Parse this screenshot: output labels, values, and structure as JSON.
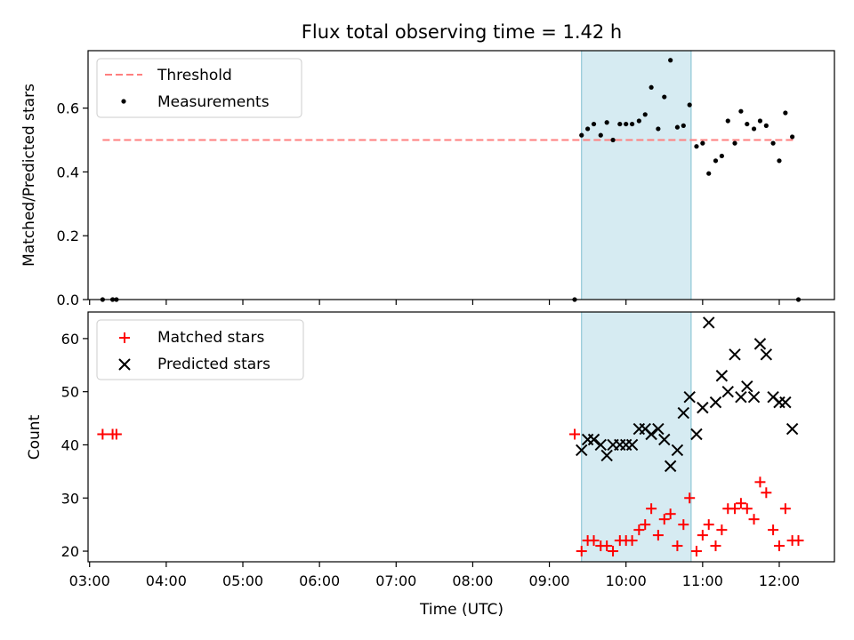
{
  "title": "Flux total observing time = 1.42 h",
  "chart_data": [
    {
      "type": "scatter",
      "ylabel": "Matched/Predicted stars",
      "ylim": [
        0,
        0.78
      ],
      "yticks": [
        0.0,
        0.2,
        0.4,
        0.6
      ],
      "ytick_labels": [
        "0.0",
        "0.2",
        "0.4",
        "0.6"
      ],
      "threshold": {
        "name": "Threshold",
        "value": 0.5,
        "x_start": 3.17,
        "x_end": 12.22,
        "color": "#ff7f7f"
      },
      "series": [
        {
          "name": "Measurements",
          "marker": "dot",
          "color": "#000000",
          "x": [
            3.17,
            3.3,
            3.35,
            9.33,
            9.42,
            9.5,
            9.58,
            9.67,
            9.75,
            9.83,
            9.92,
            10.0,
            10.08,
            10.17,
            10.25,
            10.33,
            10.42,
            10.5,
            10.58,
            10.67,
            10.75,
            10.83,
            10.92,
            11.0,
            11.08,
            11.17,
            11.25,
            11.33,
            11.42,
            11.5,
            11.58,
            11.67,
            11.75,
            11.83,
            11.92,
            12.0,
            12.08,
            12.17,
            12.25
          ],
          "y": [
            0.0,
            0.0,
            0.0,
            0.0,
            0.515,
            0.535,
            0.55,
            0.515,
            0.555,
            0.5,
            0.55,
            0.55,
            0.55,
            0.56,
            0.58,
            0.665,
            0.535,
            0.635,
            0.75,
            0.54,
            0.545,
            0.61,
            0.48,
            0.49,
            0.395,
            0.435,
            0.45,
            0.56,
            0.49,
            0.59,
            0.55,
            0.535,
            0.56,
            0.545,
            0.49,
            0.435,
            0.585,
            0.51,
            0.0
          ]
        }
      ]
    },
    {
      "type": "scatter",
      "xlabel": "Time (UTC)",
      "ylabel": "Count",
      "ylim": [
        18,
        65
      ],
      "yticks": [
        20,
        30,
        40,
        50,
        60
      ],
      "ytick_labels": [
        "20",
        "30",
        "40",
        "50",
        "60"
      ],
      "series": [
        {
          "name": "Matched stars",
          "marker": "plus",
          "color": "#ff0000",
          "x": [
            3.17,
            3.3,
            3.35,
            9.33,
            9.42,
            9.5,
            9.58,
            9.67,
            9.75,
            9.83,
            9.92,
            10.0,
            10.08,
            10.17,
            10.25,
            10.33,
            10.42,
            10.5,
            10.58,
            10.67,
            10.75,
            10.83,
            10.92,
            11.0,
            11.08,
            11.17,
            11.25,
            11.33,
            11.42,
            11.5,
            11.58,
            11.67,
            11.75,
            11.83,
            11.92,
            12.0,
            12.08,
            12.17,
            12.25
          ],
          "y": [
            42,
            42,
            42,
            42,
            20,
            22,
            22,
            21,
            21,
            20,
            22,
            22,
            22,
            24,
            25,
            28,
            23,
            26,
            27,
            21,
            25,
            30,
            20,
            23,
            25,
            21,
            24,
            28,
            28,
            29,
            28,
            26,
            33,
            31,
            24,
            21,
            28,
            22,
            22
          ]
        },
        {
          "name": "Predicted stars",
          "marker": "x",
          "color": "#000000",
          "x": [
            9.42,
            9.5,
            9.58,
            9.67,
            9.75,
            9.83,
            9.92,
            10.0,
            10.08,
            10.17,
            10.25,
            10.33,
            10.42,
            10.5,
            10.58,
            10.67,
            10.75,
            10.83,
            10.92,
            11.0,
            11.08,
            11.17,
            11.25,
            11.33,
            11.42,
            11.5,
            11.58,
            11.67,
            11.75,
            11.83,
            11.92,
            12.0,
            12.08,
            12.17
          ],
          "y": [
            39,
            41,
            41,
            40,
            38,
            40,
            40,
            40,
            40,
            43,
            43,
            42,
            43,
            41,
            36,
            39,
            46,
            49,
            42,
            47,
            63,
            48,
            53,
            50,
            57,
            49,
            51,
            49,
            59,
            57,
            49,
            48,
            48,
            43
          ]
        }
      ]
    }
  ],
  "x_axis": {
    "xlim": [
      2.98,
      12.72
    ],
    "ticks": [
      3,
      4,
      5,
      6,
      7,
      8,
      9,
      10,
      11,
      12
    ],
    "tick_labels": [
      "03:00",
      "04:00",
      "05:00",
      "06:00",
      "07:00",
      "08:00",
      "09:00",
      "10:00",
      "11:00",
      "12:00"
    ]
  },
  "highlight": {
    "x_start": 9.42,
    "x_end": 10.85,
    "color": "#add8e6"
  }
}
